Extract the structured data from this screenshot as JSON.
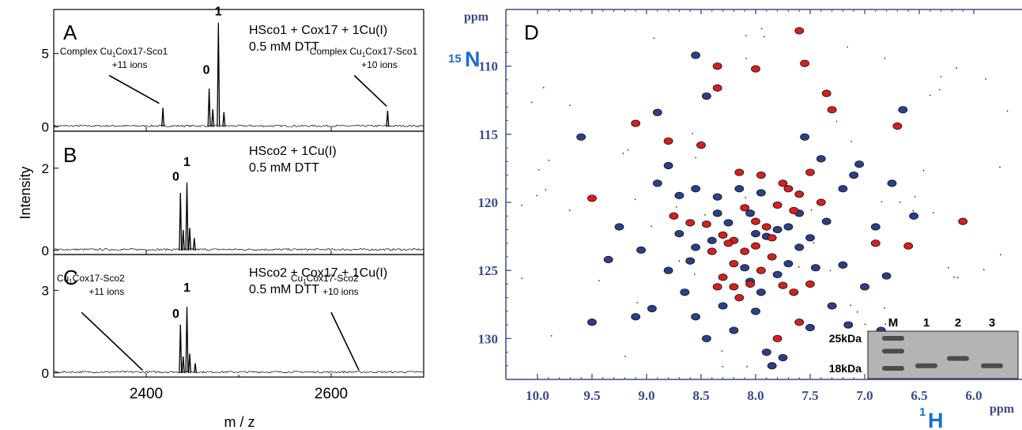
{
  "colors": {
    "ms_line": "#000000",
    "nmr_axis": "#3a4a8c",
    "nmr_red": "#d42020",
    "nmr_blue": "#2b3f8c",
    "nmr_label_blue": "#1a6fd1"
  },
  "chart_data": [
    {
      "type": "line",
      "panel": "A",
      "title": "HSco1 + Cox17 + 1Cu(I)",
      "subtitle": "0.5 mM DTT",
      "xlim": [
        2300,
        2700
      ],
      "ylim": [
        -0.3,
        8
      ],
      "ytick_labels": [
        "0",
        "5"
      ],
      "ytick_values": [
        0,
        5
      ],
      "peaks": [
        {
          "x": 2418,
          "y": 1.3
        },
        {
          "x": 2468,
          "y": 2.6
        },
        {
          "x": 2472,
          "y": 1.2
        },
        {
          "x": 2478,
          "y": 7.1
        },
        {
          "x": 2484,
          "y": 1.0
        },
        {
          "x": 2661,
          "y": 1.1
        }
      ],
      "peak_labels": [
        {
          "text": "0",
          "x": 2465,
          "y": 3.6
        },
        {
          "text": "1",
          "x": 2478,
          "y": 7.6
        }
      ],
      "annotations": [
        {
          "text": "Complex Cu",
          "sub": "1",
          "rest": "Cox17-Sco1",
          "ion": "+11 ions",
          "text_x": 2365,
          "text_y": 4.5,
          "arrow_from": [
            2360,
            3.5
          ],
          "arrow_to": [
            2414,
            1.6
          ]
        },
        {
          "text": "Complex Cu",
          "sub": "1",
          "rest": "Cox17-Sco1",
          "ion": "+10 ions",
          "text_x": 2635,
          "text_y": 4.5,
          "arrow_from": [
            2625,
            3.5
          ],
          "arrow_to": [
            2660,
            1.4
          ]
        }
      ]
    },
    {
      "type": "line",
      "panel": "B",
      "title": "HSco2 + 1Cu(I)",
      "subtitle": "0.5 mM DTT",
      "xlim": [
        2300,
        2700
      ],
      "ylim": [
        -0.1,
        2.9
      ],
      "ytick_labels": [
        "0",
        "2"
      ],
      "ytick_values": [
        0,
        2
      ],
      "peaks": [
        {
          "x": 2437,
          "y": 1.4
        },
        {
          "x": 2440,
          "y": 0.5
        },
        {
          "x": 2444,
          "y": 1.65
        },
        {
          "x": 2447,
          "y": 0.55
        },
        {
          "x": 2452,
          "y": 0.3
        }
      ],
      "peak_labels": [
        {
          "text": "0",
          "x": 2432,
          "y": 1.7
        },
        {
          "text": "1",
          "x": 2444,
          "y": 2.05
        }
      ],
      "annotations": []
    },
    {
      "type": "line",
      "panel": "C",
      "title": "HSco2 + Cox17 + 1Cu(I)",
      "subtitle": "0.5 mM DTT",
      "xlim": [
        2300,
        2700
      ],
      "ylim": [
        -0.15,
        4.3
      ],
      "ytick_labels": [
        "0",
        "3"
      ],
      "ytick_values": [
        0,
        3
      ],
      "peaks": [
        {
          "x": 2437,
          "y": 1.75
        },
        {
          "x": 2440,
          "y": 0.6
        },
        {
          "x": 2444,
          "y": 2.4
        },
        {
          "x": 2447,
          "y": 0.7
        },
        {
          "x": 2453,
          "y": 0.35
        }
      ],
      "peak_labels": [
        {
          "text": "0",
          "x": 2432,
          "y": 2.0
        },
        {
          "text": "1",
          "x": 2444,
          "y": 2.95
        }
      ],
      "annotations": [
        {
          "text": "Cu",
          "sub": "1",
          "rest": "Cox17-Sco2",
          "ion": "+11 ions",
          "text_x": 2340,
          "text_y": 3.1,
          "arrow_from": [
            2330,
            2.2
          ],
          "arrow_to": [
            2396,
            0.1
          ]
        },
        {
          "text": "Cu",
          "sub": "1",
          "rest": "Cox17-Sco2",
          "ion": "+10 ions",
          "text_x": 2593,
          "text_y": 3.1,
          "arrow_from": [
            2600,
            2.2
          ],
          "arrow_to": [
            2630,
            0.1
          ]
        }
      ]
    }
  ],
  "ms_axes": {
    "xlabel": "m / z",
    "ylabel": "Intensity",
    "xtick_labels": [
      "2400",
      "2600"
    ],
    "xtick_values": [
      2400,
      2600
    ],
    "xlim": [
      2300,
      2700
    ]
  },
  "nmr": {
    "type": "scatter",
    "panel": "D",
    "xlabel": "H",
    "xlabel_sup": "1",
    "ylabel": "N",
    "ylabel_sup": "15",
    "xunit": "ppm",
    "yunit": "ppm",
    "xlim": [
      10.0,
      6.0
    ],
    "ylim": [
      107,
      133
    ],
    "xtick_labels": [
      "10.0",
      "9.5",
      "9.0",
      "8.5",
      "8.0",
      "7.5",
      "7.0",
      "6.5",
      "6.0"
    ],
    "xtick_values": [
      10.0,
      9.5,
      9.0,
      8.5,
      8.0,
      7.5,
      7.0,
      6.5,
      6.0
    ],
    "ytick_labels": [
      "110",
      "115",
      "120",
      "125",
      "130"
    ],
    "ytick_values": [
      110,
      115,
      120,
      125,
      130
    ],
    "red_peaks": [
      [
        7.6,
        107.4
      ],
      [
        7.55,
        109.8
      ],
      [
        8.0,
        110.2
      ],
      [
        8.35,
        110.0
      ],
      [
        8.35,
        111.6
      ],
      [
        9.1,
        114.2
      ],
      [
        8.8,
        115.5
      ],
      [
        8.5,
        115.8
      ],
      [
        7.3,
        113.2
      ],
      [
        7.35,
        112.0
      ],
      [
        6.7,
        114.4
      ],
      [
        9.5,
        119.7
      ],
      [
        8.15,
        117.8
      ],
      [
        7.95,
        118.0
      ],
      [
        7.75,
        118.6
      ],
      [
        7.6,
        119.4
      ],
      [
        7.5,
        117.8
      ],
      [
        7.4,
        120.0
      ],
      [
        7.65,
        120.6
      ],
      [
        7.8,
        120.2
      ],
      [
        8.1,
        120.4
      ],
      [
        8.0,
        121.4
      ],
      [
        7.9,
        121.8
      ],
      [
        8.45,
        121.6
      ],
      [
        8.6,
        121.5
      ],
      [
        8.3,
        122.4
      ],
      [
        8.2,
        122.8
      ],
      [
        8.1,
        123.6
      ],
      [
        8.2,
        124.5
      ],
      [
        8.3,
        125.5
      ],
      [
        8.2,
        126.2
      ],
      [
        8.15,
        127.0
      ],
      [
        8.35,
        126.2
      ],
      [
        8.25,
        123.0
      ],
      [
        8.4,
        123.6
      ],
      [
        7.85,
        124.0
      ],
      [
        7.75,
        126.1
      ],
      [
        7.65,
        126.6
      ],
      [
        7.8,
        130.0
      ],
      [
        7.6,
        128.8
      ],
      [
        7.5,
        126.0
      ],
      [
        6.9,
        123.0
      ],
      [
        6.6,
        123.2
      ],
      [
        6.1,
        121.4
      ],
      [
        8.75,
        121.0
      ],
      [
        8.0,
        123.2
      ],
      [
        7.95,
        125.0
      ],
      [
        8.05,
        126.0
      ],
      [
        7.85,
        122.6
      ],
      [
        7.7,
        119.0
      ]
    ],
    "blue_peaks": [
      [
        8.55,
        109.2
      ],
      [
        8.8,
        117.3
      ],
      [
        8.7,
        119.5
      ],
      [
        8.55,
        119.0
      ],
      [
        8.35,
        119.6
      ],
      [
        8.35,
        120.8
      ],
      [
        8.25,
        121.5
      ],
      [
        8.05,
        120.8
      ],
      [
        8.0,
        122.3
      ],
      [
        7.9,
        122.5
      ],
      [
        7.8,
        122.0
      ],
      [
        7.7,
        121.8
      ],
      [
        7.6,
        120.8
      ],
      [
        7.35,
        121.4
      ],
      [
        7.2,
        119.0
      ],
      [
        7.1,
        118.0
      ],
      [
        7.4,
        116.8
      ],
      [
        8.6,
        124.3
      ],
      [
        8.8,
        125.0
      ],
      [
        8.95,
        127.8
      ],
      [
        9.35,
        124.2
      ],
      [
        9.5,
        128.8
      ],
      [
        9.1,
        128.4
      ],
      [
        8.55,
        128.4
      ],
      [
        8.45,
        130.0
      ],
      [
        8.2,
        129.4
      ],
      [
        8.0,
        128.0
      ],
      [
        7.9,
        131.0
      ],
      [
        7.75,
        131.4
      ],
      [
        7.5,
        129.2
      ],
      [
        7.45,
        124.8
      ],
      [
        7.2,
        124.6
      ],
      [
        7.0,
        126.2
      ],
      [
        6.8,
        125.4
      ],
      [
        6.65,
        113.2
      ],
      [
        6.75,
        118.6
      ],
      [
        7.05,
        117.2
      ],
      [
        8.7,
        122.3
      ],
      [
        8.55,
        123.3
      ],
      [
        8.4,
        122.8
      ],
      [
        8.1,
        124.8
      ],
      [
        8.05,
        125.8
      ],
      [
        7.95,
        126.6
      ],
      [
        7.8,
        125.3
      ],
      [
        7.7,
        124.5
      ],
      [
        7.6,
        123.3
      ],
      [
        7.5,
        122.6
      ],
      [
        8.9,
        118.6
      ],
      [
        9.25,
        121.8
      ],
      [
        9.05,
        123.5
      ],
      [
        8.65,
        126.6
      ],
      [
        8.3,
        127.6
      ],
      [
        7.3,
        127.6
      ],
      [
        7.15,
        129.0
      ],
      [
        6.85,
        129.4
      ],
      [
        7.95,
        119.3
      ],
      [
        8.15,
        119.0
      ],
      [
        7.55,
        115.2
      ],
      [
        8.45,
        112.2
      ],
      [
        7.85,
        132.0
      ],
      [
        6.55,
        121.0
      ],
      [
        6.9,
        121.8
      ],
      [
        9.6,
        115.2
      ],
      [
        8.9,
        113.4
      ]
    ],
    "gel": {
      "lane_labels": [
        "M",
        "1",
        "2",
        "3"
      ],
      "marker_labels": [
        "25kDa",
        "18kDa"
      ],
      "marker_values": [
        25,
        18
      ],
      "bands": [
        {
          "lane": 0,
          "kDa": 25
        },
        {
          "lane": 0,
          "kDa": 22
        },
        {
          "lane": 0,
          "kDa": 18
        },
        {
          "lane": 1,
          "kDa": 18.6
        },
        {
          "lane": 2,
          "kDa": 20.3
        },
        {
          "lane": 3,
          "kDa": 18.6
        }
      ]
    }
  }
}
